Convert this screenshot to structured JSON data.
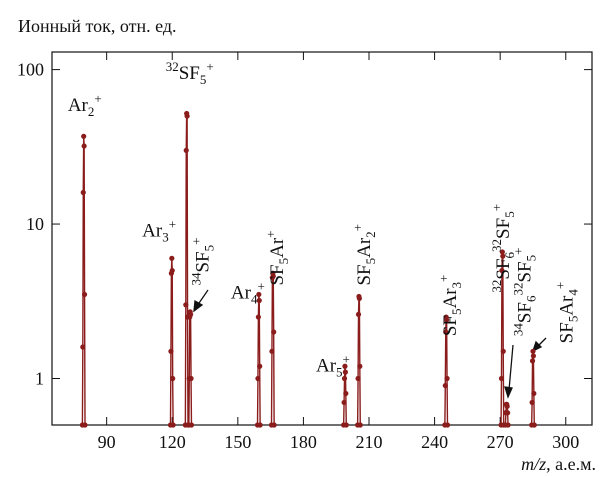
{
  "chart_data": {
    "type": "line",
    "y_label": "Ионный  ток, отн. ед.",
    "x_label_italic": "m/z",
    "x_label_rest": ",  а.е.м.",
    "log_y": true,
    "color": "#8b1c1c",
    "xlim": [
      65,
      312
    ],
    "ylim": [
      0.5,
      130
    ],
    "xticks": [
      90,
      120,
      150,
      180,
      210,
      240,
      270,
      300
    ],
    "yticks": [
      1,
      10,
      100
    ],
    "x": [
      78.9,
      79.1,
      79.3,
      79.5,
      79.7,
      79.9,
      80.1,
      100,
      119.2,
      119.4,
      119.6,
      119.8,
      120.0,
      120.2,
      120.4,
      123,
      126.0,
      126.2,
      126.4,
      126.6,
      126.8,
      127.0,
      127.2,
      127.4,
      127.6,
      127.8,
      128.0,
      128.2,
      128.4,
      128.6,
      128.8,
      140,
      159.0,
      159.2,
      159.4,
      159.6,
      159.8,
      160.0,
      160.2,
      163,
      165.4,
      165.6,
      165.8,
      166.0,
      166.2,
      166.4,
      166.6,
      180,
      198.4,
      198.6,
      198.8,
      199.0,
      199.2,
      199.4,
      199.6,
      202,
      204.8,
      205.0,
      205.2,
      205.4,
      205.6,
      205.8,
      206.0,
      225,
      244.7,
      244.9,
      245.1,
      245.3,
      245.5,
      245.7,
      245.9,
      260,
      270.4,
      270.6,
      270.8,
      271.0,
      271.2,
      271.4,
      271.6,
      272,
      272.4,
      272.6,
      272.8,
      273.0,
      273.2,
      273.4,
      273.6,
      280,
      284.4,
      284.6,
      284.8,
      285.0,
      285.2,
      285.4,
      285.6
    ],
    "values": [
      0.5,
      1.6,
      16,
      37,
      32,
      3.5,
      0.5,
      null,
      0.5,
      1.5,
      4.8,
      6,
      5,
      1,
      0.5,
      null,
      0.5,
      3,
      30,
      52,
      50,
      2.5,
      0.5,
      null,
      0.5,
      1,
      2.5,
      2.7,
      2.6,
      1,
      0.5,
      null,
      0.5,
      1,
      2.5,
      3.5,
      3.2,
      1.2,
      0.5,
      null,
      0.5,
      1.5,
      4.5,
      4.8,
      4.6,
      2,
      0.5,
      null,
      0.5,
      0.7,
      1,
      1.2,
      1.1,
      0.8,
      0.5,
      null,
      0.5,
      1,
      2.6,
      3.4,
      3.3,
      1.2,
      0.5,
      null,
      0.5,
      0.9,
      2,
      2.5,
      2.4,
      1,
      0.5,
      null,
      0.5,
      1,
      5,
      6.6,
      6.2,
      1.5,
      0.5,
      null,
      0.5,
      0.6,
      0.68,
      0.68,
      0.66,
      0.6,
      0.5,
      null,
      0.5,
      0.7,
      1.3,
      1.5,
      1.4,
      0.8,
      0.5
    ],
    "annotations": [
      {
        "x": 80,
        "y": 54,
        "rotated": false,
        "parts": [
          [
            "Ar",
            ""
          ],
          [
            "2",
            "sub"
          ],
          [
            "+",
            "sup"
          ]
        ]
      },
      {
        "x": 128,
        "y": 87,
        "rotated": false,
        "parts": [
          [
            "32",
            "sup"
          ],
          [
            "SF",
            ""
          ],
          [
            "5",
            "sub"
          ],
          [
            "+",
            "sup"
          ]
        ]
      },
      {
        "x": 114,
        "y": 8.3,
        "rotated": false,
        "parts": [
          [
            "Ar",
            ""
          ],
          [
            "3",
            "sub"
          ],
          [
            "+",
            "sup"
          ]
        ]
      },
      {
        "x": 136.5,
        "y": 4.0,
        "rotated": true,
        "parts": [
          [
            "34",
            "sup"
          ],
          [
            "SF",
            ""
          ],
          [
            "5",
            "sub"
          ],
          [
            "+",
            "sup"
          ]
        ]
      },
      {
        "x": 154.6,
        "y": 3.3,
        "rotated": false,
        "parts": [
          [
            "Ar",
            ""
          ],
          [
            "4",
            "sub"
          ],
          [
            "+",
            "sup"
          ]
        ]
      },
      {
        "x": 170.6,
        "y": 4.0,
        "rotated": true,
        "parts": [
          [
            "SF",
            ""
          ],
          [
            "5",
            "sub"
          ],
          [
            "Ar",
            ""
          ],
          [
            "+",
            "sup"
          ]
        ]
      },
      {
        "x": 193.5,
        "y": 1.11,
        "rotated": false,
        "parts": [
          [
            "Ar",
            ""
          ],
          [
            "5",
            "sub"
          ],
          [
            "+",
            "sup"
          ]
        ]
      },
      {
        "x": 210.5,
        "y": 4.0,
        "rotated": true,
        "parts": [
          [
            "SF",
            ""
          ],
          [
            "5",
            "sub"
          ],
          [
            "Ar",
            ""
          ],
          [
            "2",
            "sub"
          ],
          [
            "+",
            "sup"
          ]
        ]
      },
      {
        "x": 249.9,
        "y": 1.88,
        "rotated": true,
        "parts": [
          [
            "SF",
            ""
          ],
          [
            "5",
            "sub"
          ],
          [
            "Ar",
            ""
          ],
          [
            "3",
            "sub"
          ],
          [
            "+",
            "sup"
          ]
        ]
      },
      {
        "x": 274,
        "y": 3.6,
        "rotated": true,
        "parts": [
          [
            "32",
            "sup"
          ],
          [
            "SF",
            ""
          ],
          [
            "6",
            "sub"
          ],
          [
            "32",
            "sup"
          ],
          [
            "SF",
            ""
          ],
          [
            "5",
            "sub"
          ],
          [
            "+",
            "sup"
          ]
        ]
      },
      {
        "x": 283.8,
        "y": 1.88,
        "rotated": true,
        "parts": [
          [
            "34",
            "sup"
          ],
          [
            "SF",
            ""
          ],
          [
            "6",
            "sub"
          ],
          [
            "32",
            "sup"
          ],
          [
            "SF",
            ""
          ],
          [
            "5",
            "sub"
          ],
          [
            "+",
            "sup"
          ]
        ]
      },
      {
        "x": 303,
        "y": 1.69,
        "rotated": true,
        "parts": [
          [
            "SF",
            ""
          ],
          [
            "5",
            "sub"
          ],
          [
            "Ar",
            ""
          ],
          [
            "4",
            "sub"
          ],
          [
            "+",
            "sup"
          ]
        ]
      }
    ]
  }
}
